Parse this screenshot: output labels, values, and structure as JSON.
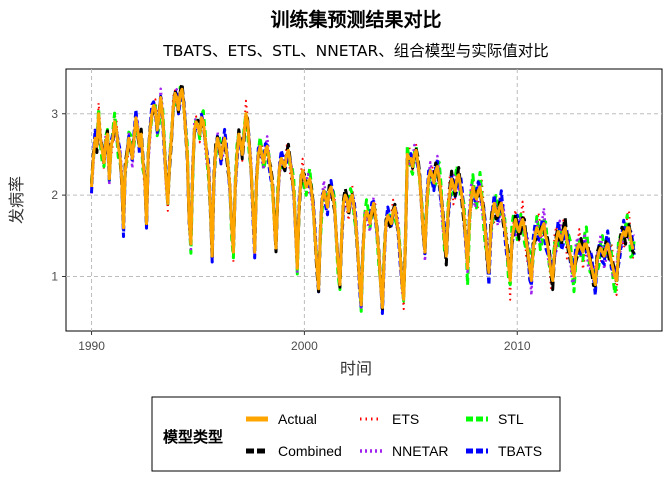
{
  "chart_data": {
    "type": "line",
    "title": "训练集预测结果对比",
    "subtitle": "TBATS、ETS、STL、NNETAR、组合模型与实际值对比",
    "xlabel": "时间",
    "ylabel": "发病率",
    "xlim": [
      1988.8,
      2016.8
    ],
    "ylim": [
      0.33,
      3.55
    ],
    "x_ticks": [
      1990,
      2000,
      2010
    ],
    "y_ticks": [
      1,
      2,
      3
    ],
    "grid": true,
    "legend": {
      "title": "模型类型",
      "placement": "bottom",
      "entries": [
        {
          "name": "Actual",
          "color": "#FFA500"
        },
        {
          "name": "ETS",
          "color": "#FF0000"
        },
        {
          "name": "STL",
          "color": "#00FF00"
        },
        {
          "name": "Combined",
          "color": "#000000"
        },
        {
          "name": "NNETAR",
          "color": "#A020F0"
        },
        {
          "name": "TBATS",
          "color": "#0000FF"
        }
      ]
    },
    "x_start": 1990,
    "x_step_months": 1,
    "series": [
      {
        "name": "Actual",
        "color": "#FFA500",
        "style": "solid",
        "values": [
          2.1,
          2.45,
          2.7,
          2.6,
          3.0,
          2.7,
          2.55,
          2.4,
          2.65,
          2.75,
          2.2,
          2.6,
          2.7,
          2.9,
          2.8,
          2.6,
          2.5,
          2.2,
          1.6,
          2.3,
          2.5,
          2.7,
          2.6,
          2.45,
          2.7,
          2.95,
          2.8,
          2.6,
          2.75,
          2.4,
          2.2,
          1.65,
          2.5,
          2.8,
          3.0,
          3.1,
          3.05,
          2.8,
          2.95,
          3.2,
          3.0,
          2.6,
          2.2,
          1.9,
          2.4,
          2.7,
          3.05,
          3.25,
          3.2,
          3.05,
          3.25,
          3.3,
          3.1,
          2.8,
          2.5,
          1.7,
          1.4,
          2.3,
          2.8,
          2.9,
          2.85,
          2.75,
          2.95,
          2.9,
          2.7,
          2.5,
          2.3,
          1.85,
          1.25,
          2.2,
          2.55,
          2.7,
          2.6,
          2.45,
          2.6,
          2.7,
          2.55,
          2.35,
          2.1,
          1.6,
          1.3,
          2.1,
          2.5,
          2.75,
          2.65,
          2.5,
          2.75,
          3.0,
          2.9,
          2.6,
          2.3,
          1.8,
          1.3,
          2.15,
          2.5,
          2.6,
          2.5,
          2.4,
          2.55,
          2.6,
          2.45,
          2.3,
          2.1,
          1.7,
          1.35,
          2.0,
          2.35,
          2.45,
          2.4,
          2.35,
          2.5,
          2.55,
          2.4,
          2.25,
          2.05,
          1.6,
          1.1,
          1.85,
          2.2,
          2.3,
          2.2,
          2.1,
          2.15,
          2.2,
          2.05,
          1.85,
          1.5,
          1.15,
          0.85,
          1.55,
          1.95,
          2.05,
          1.95,
          1.85,
          2.05,
          2.1,
          2.0,
          1.85,
          1.5,
          1.15,
          0.9,
          1.5,
          1.9,
          2.0,
          1.95,
          1.8,
          1.95,
          2.0,
          1.85,
          1.65,
          1.35,
          0.95,
          0.65,
          1.3,
          1.7,
          1.8,
          1.75,
          1.65,
          1.8,
          1.9,
          1.75,
          1.55,
          1.25,
          0.9,
          0.62,
          1.25,
          1.65,
          1.75,
          1.7,
          1.65,
          1.8,
          1.85,
          1.7,
          1.55,
          1.25,
          0.9,
          0.72,
          1.45,
          2.5,
          2.45,
          2.45,
          2.35,
          2.5,
          2.55,
          2.4,
          2.2,
          1.9,
          1.55,
          1.3,
          1.9,
          2.2,
          2.3,
          2.25,
          2.15,
          2.3,
          2.35,
          2.2,
          2.0,
          1.75,
          1.45,
          1.25,
          1.8,
          2.05,
          2.2,
          2.1,
          2.05,
          2.2,
          2.25,
          2.1,
          1.95,
          1.75,
          1.45,
          1.1,
          1.7,
          1.95,
          2.1,
          2.0,
          1.95,
          2.05,
          2.1,
          1.95,
          1.8,
          1.55,
          1.25,
          1.05,
          1.55,
          1.75,
          1.9,
          1.8,
          1.75,
          1.85,
          1.9,
          1.75,
          1.6,
          1.4,
          1.15,
          0.95,
          1.45,
          1.6,
          1.7,
          1.6,
          1.55,
          1.65,
          1.7,
          1.6,
          1.45,
          1.3,
          1.1,
          0.95,
          1.35,
          1.5,
          1.6,
          1.55,
          1.5,
          1.6,
          1.65,
          1.5,
          1.4,
          1.25,
          1.05,
          0.95,
          1.3,
          1.45,
          1.55,
          1.5,
          1.45,
          1.55,
          1.6,
          1.45,
          1.35,
          1.25,
          1.1,
          1.0,
          1.25,
          1.35,
          1.4,
          1.35,
          1.3,
          1.4,
          1.4,
          1.3,
          1.2,
          1.1,
          1.0,
          0.9,
          1.2,
          1.3,
          1.35,
          1.3,
          1.25,
          1.35,
          1.4,
          1.3,
          1.2,
          1.1,
          1.0,
          0.95,
          1.25,
          1.4,
          1.5,
          1.55,
          1.5,
          1.6,
          1.6,
          1.45,
          1.35,
          1.35
        ]
      }
    ]
  }
}
